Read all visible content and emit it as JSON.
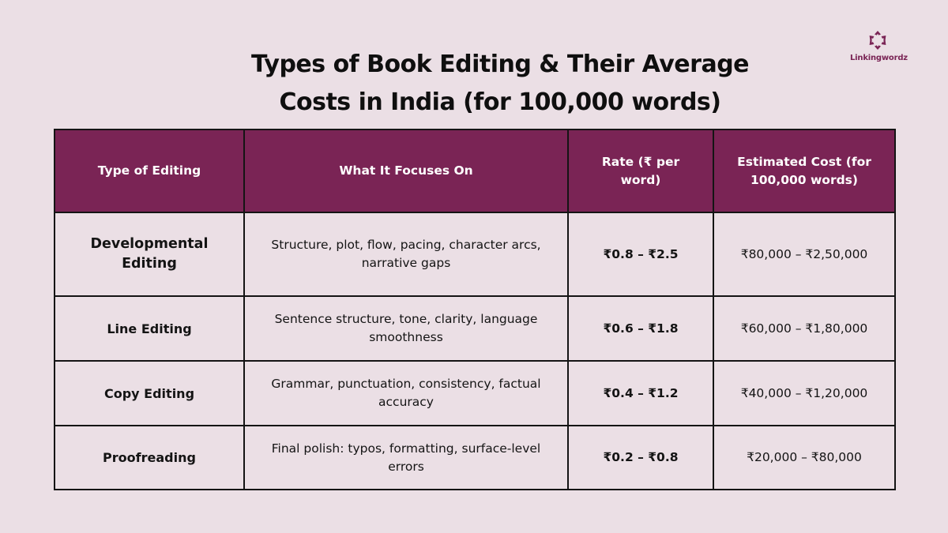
{
  "title": {
    "line1": "Types of Book Editing & Their Average",
    "line2": "Costs in India (for 100,000 words)"
  },
  "logo": {
    "icon": "linkingwordz-logo-icon",
    "text": "Linkingwordz",
    "color": "#7A2455"
  },
  "colors": {
    "background": "#EBDFE5",
    "header": "#7A2455",
    "border": "#141414"
  },
  "table": {
    "headers": [
      "Type of Editing",
      "What It Focuses On",
      "Rate (₹ per word)",
      "Estimated Cost (for 100,000 words)"
    ],
    "rows": [
      {
        "type": "Developmental Editing",
        "focus": "Structure, plot, flow, pacing, character arcs, narrative gaps",
        "rate": "₹0.8 – ₹2.5",
        "cost": "₹80,000 – ₹2,50,000"
      },
      {
        "type": "Line Editing",
        "focus": "Sentence structure, tone, clarity, language smoothness",
        "rate": "₹0.6 – ₹1.8",
        "cost": "₹60,000 – ₹1,80,000"
      },
      {
        "type": "Copy Editing",
        "focus": "Grammar, punctuation, consistency, factual accuracy",
        "rate": "₹0.4 – ₹1.2",
        "cost": "₹40,000 – ₹1,20,000"
      },
      {
        "type": "Proofreading",
        "focus": "Final polish: typos, formatting, surface-level errors",
        "rate": "₹0.2 – ₹0.8",
        "cost": "₹20,000 – ₹80,000"
      }
    ]
  }
}
